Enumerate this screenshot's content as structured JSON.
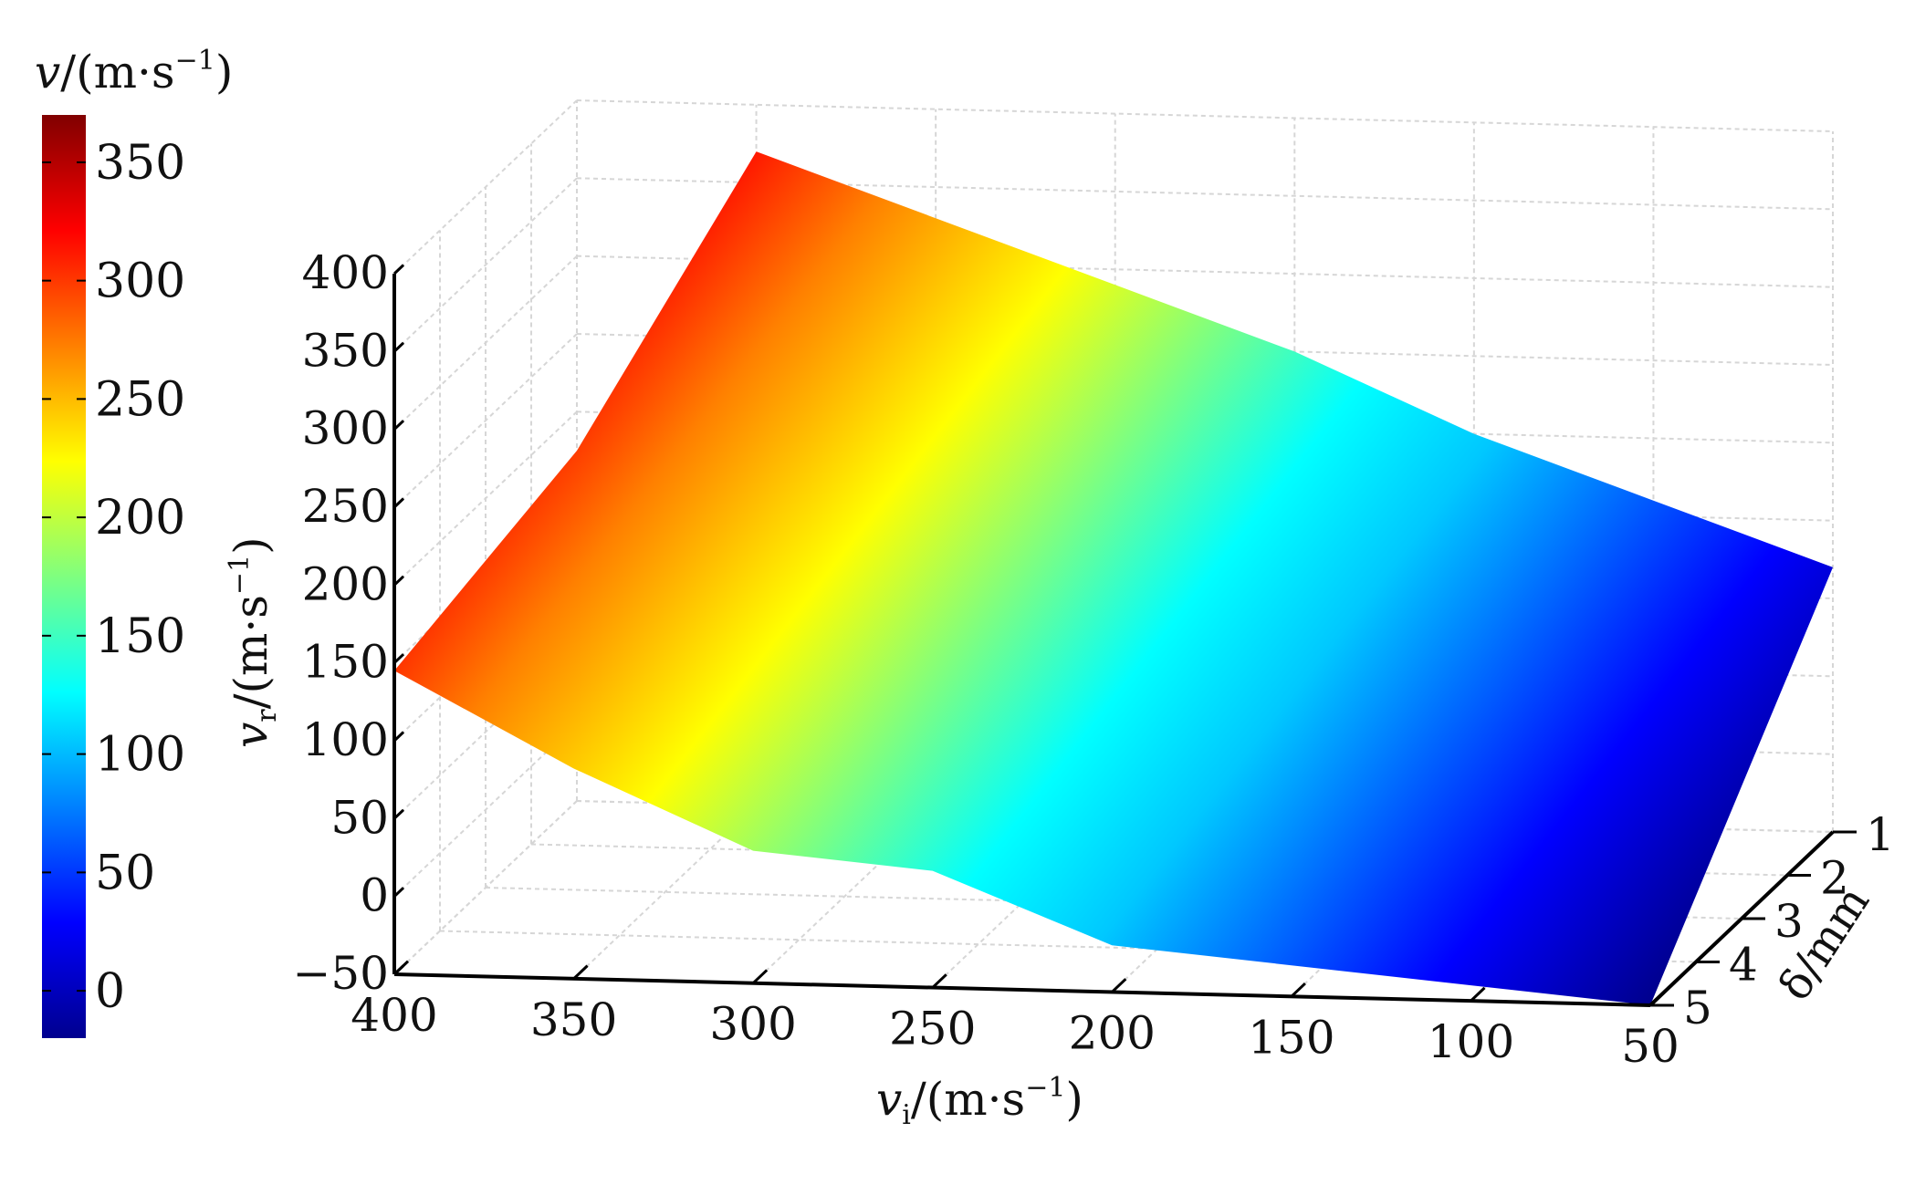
{
  "chart_data": {
    "type": "surface",
    "colorbar": {
      "title_var": "v",
      "title_unit": "/(m·s",
      "title_exp": "−1",
      "title_close": ")",
      "ticks": [
        "350",
        "300",
        "250",
        "200",
        "150",
        "100",
        "50",
        "0"
      ],
      "tick_values": [
        350,
        300,
        250,
        200,
        150,
        100,
        50,
        0
      ],
      "range": [
        -20,
        370
      ],
      "colormap": "jet"
    },
    "x_axis": {
      "label_var": "v",
      "label_sub": "i",
      "label_unit": "/(m·s",
      "label_exp": "−1",
      "label_close": ")",
      "ticks": [
        "400",
        "350",
        "300",
        "250",
        "200",
        "150",
        "100",
        "50"
      ],
      "tick_values": [
        400,
        350,
        300,
        250,
        200,
        150,
        100,
        50
      ],
      "range": [
        50,
        400
      ]
    },
    "y_axis": {
      "label": "δ/mm",
      "ticks": [
        "1",
        "2",
        "3",
        "4",
        "5"
      ],
      "tick_values": [
        1,
        2,
        3,
        4,
        5
      ],
      "range": [
        1,
        5
      ]
    },
    "z_axis": {
      "label_var": "v",
      "label_sub": "r",
      "label_unit": "/(m·s",
      "label_exp": "−1",
      "label_close": ")",
      "ticks": [
        "400",
        "350",
        "300",
        "250",
        "200",
        "150",
        "100",
        "50",
        "0",
        "−50"
      ],
      "tick_values": [
        400,
        350,
        300,
        250,
        200,
        150,
        100,
        50,
        0,
        -50
      ],
      "range": [
        -50,
        400
      ]
    },
    "surface": {
      "x": [
        400,
        350,
        300,
        250,
        200,
        150,
        100,
        50
      ],
      "top_edge_delta1": [
        175,
        370,
        330,
        290,
        250,
        200,
        160,
        120
      ],
      "bottom_edge_delta5": [
        145,
        85,
        35,
        25,
        -20,
        -30,
        -40,
        -50
      ],
      "description_values_at_delta": [
        1,
        5
      ]
    },
    "grid": true
  }
}
